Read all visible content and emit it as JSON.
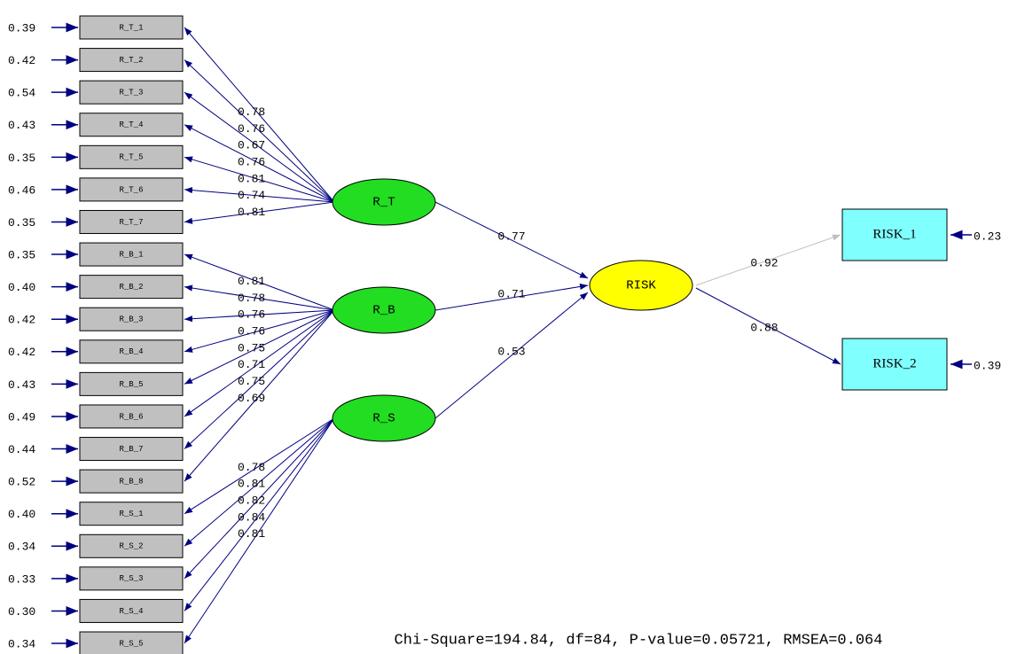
{
  "latents": [
    {
      "name": "R_T",
      "indicators": [
        {
          "name": "R_T_1",
          "error": "0.39",
          "loading": "0.78"
        },
        {
          "name": "R_T_2",
          "error": "0.42",
          "loading": "0.76"
        },
        {
          "name": "R_T_3",
          "error": "0.54",
          "loading": "0.67"
        },
        {
          "name": "R_T_4",
          "error": "0.43",
          "loading": "0.76"
        },
        {
          "name": "R_T_5",
          "error": "0.35",
          "loading": "0.81"
        },
        {
          "name": "R_T_6",
          "error": "0.46",
          "loading": "0.74"
        },
        {
          "name": "R_T_7",
          "error": "0.35",
          "loading": "0.81"
        }
      ]
    },
    {
      "name": "R_B",
      "indicators": [
        {
          "name": "R_B_1",
          "error": "0.35",
          "loading": "0.81"
        },
        {
          "name": "R_B_2",
          "error": "0.40",
          "loading": "0.78"
        },
        {
          "name": "R_B_3",
          "error": "0.42",
          "loading": "0.76"
        },
        {
          "name": "R_B_4",
          "error": "0.42",
          "loading": "0.76"
        },
        {
          "name": "R_B_5",
          "error": "0.43",
          "loading": "0.75"
        },
        {
          "name": "R_B_6",
          "error": "0.49",
          "loading": "0.71"
        },
        {
          "name": "R_B_7",
          "error": "0.44",
          "loading": "0.75"
        },
        {
          "name": "R_B_8",
          "error": "0.52",
          "loading": "0.69"
        }
      ]
    },
    {
      "name": "R_S",
      "indicators": [
        {
          "name": "R_S_1",
          "error": "0.40",
          "loading": "0.78"
        },
        {
          "name": "R_S_2",
          "error": "0.34",
          "loading": "0.81"
        },
        {
          "name": "R_S_3",
          "error": "0.33",
          "loading": "0.82"
        },
        {
          "name": "R_S_4",
          "error": "0.30",
          "loading": "0.84"
        },
        {
          "name": "R_S_5",
          "error": "0.34",
          "loading": "0.81"
        }
      ]
    }
  ],
  "outcome": {
    "name": "RISK",
    "paths": [
      "0.77",
      "0.71",
      "0.53"
    ],
    "indicators": [
      {
        "name": "RISK_1",
        "loading": "0.92",
        "error": "0.23"
      },
      {
        "name": "RISK_2",
        "loading": "0.88",
        "error": "0.39"
      }
    ]
  },
  "fit": "Chi-Square=194.84, df=84, P-value=0.05721, RMSEA=0.064"
}
